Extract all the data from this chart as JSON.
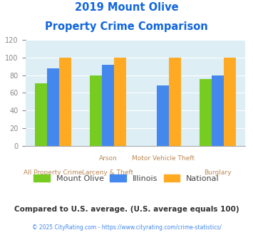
{
  "title_line1": "2019 Mount Olive",
  "title_line2": "Property Crime Comparison",
  "series": {
    "Mount Olive": [
      71,
      80,
      0,
      76
    ],
    "Illinois": [
      88,
      92,
      68,
      80
    ],
    "National": [
      100,
      100,
      100,
      100
    ]
  },
  "colors": {
    "Mount Olive": "#77cc22",
    "Illinois": "#4488ee",
    "National": "#ffaa22"
  },
  "top_labels": [
    "",
    "Arson",
    "Motor Vehicle Theft",
    ""
  ],
  "bot_labels": [
    "All Property Crime",
    "Larceny & Theft",
    "",
    "Burglary"
  ],
  "ylim": [
    0,
    120
  ],
  "yticks": [
    0,
    20,
    40,
    60,
    80,
    100,
    120
  ],
  "title_color": "#1166dd",
  "xlabel_color": "#bb8855",
  "legend_text_color": "#444444",
  "footer_note": "Compared to U.S. average. (U.S. average equals 100)",
  "footer_copy": "© 2025 CityRating.com - https://www.cityrating.com/crime-statistics/",
  "footer_note_color": "#333333",
  "footer_copy_color": "#4488ee",
  "plot_bg_color": "#ddeef5",
  "bar_width": 0.22,
  "group_positions": [
    0,
    1,
    2,
    3
  ]
}
